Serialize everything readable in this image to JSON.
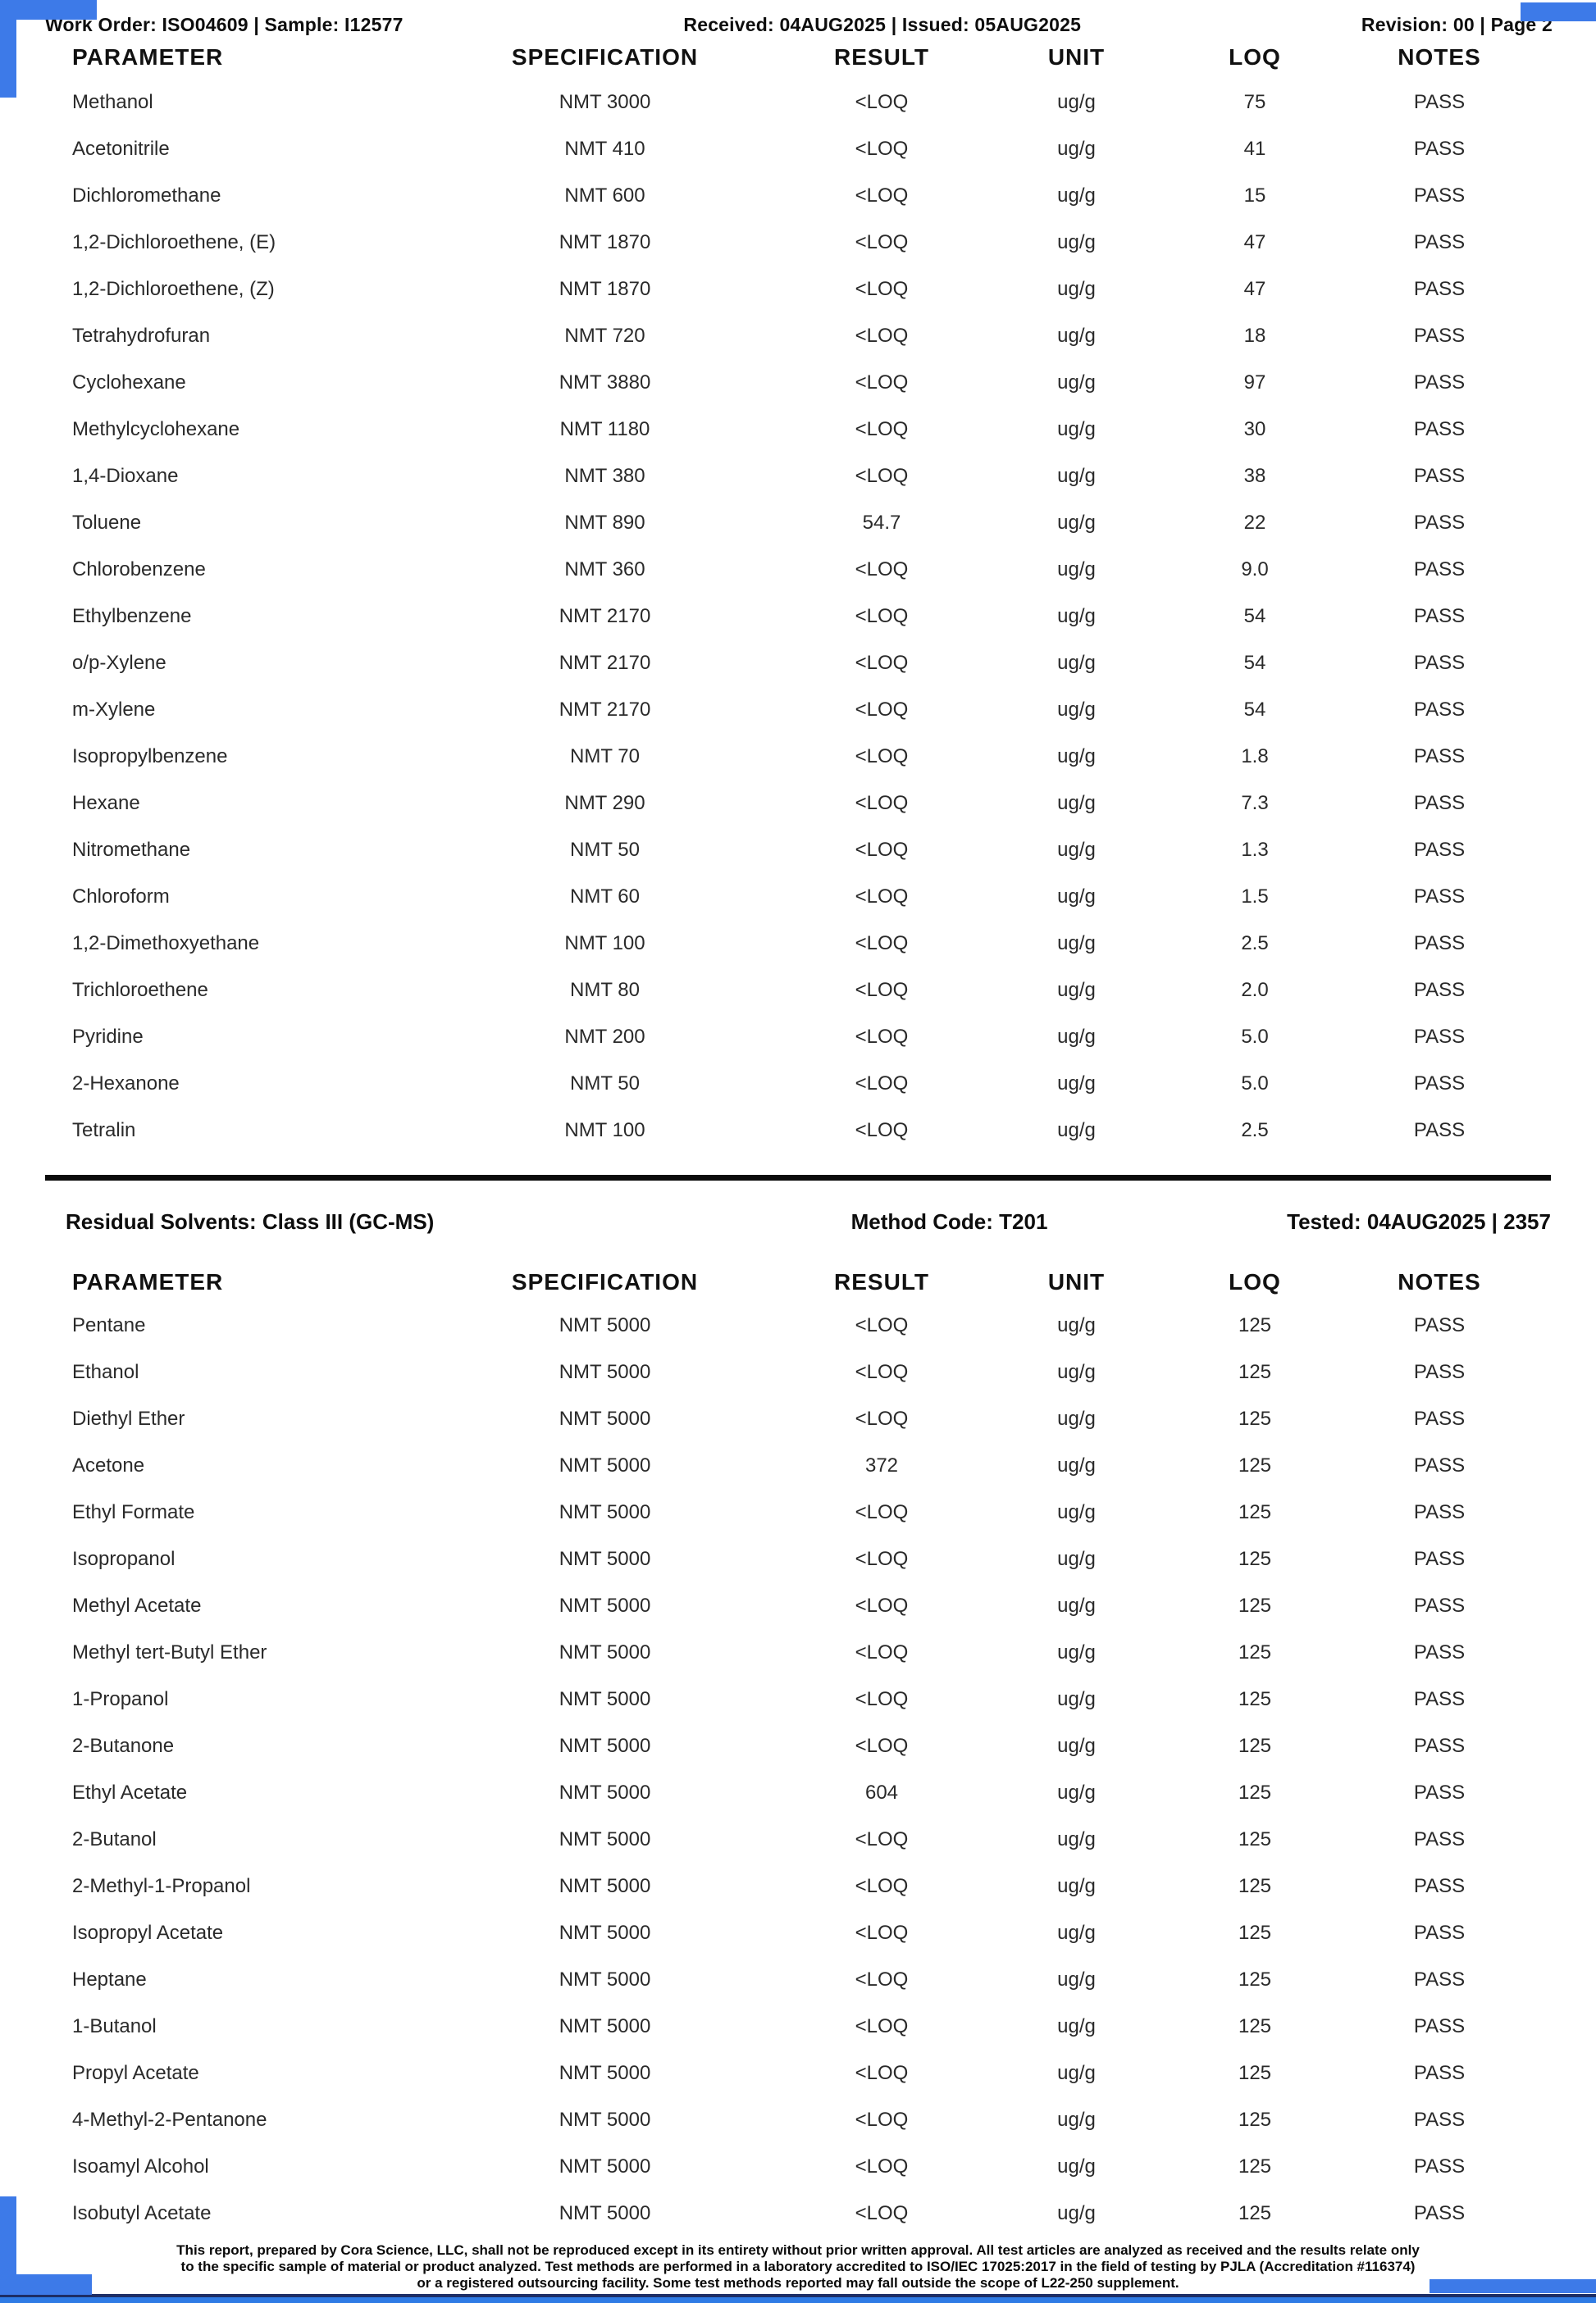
{
  "header": {
    "left": "Work Order: ISO04609 | Sample: I12577",
    "center": "Received: 04AUG2025 | Issued: 05AUG2025",
    "right": "Revision: 00 | Page 2"
  },
  "columns": [
    "PARAMETER",
    "SPECIFICATION",
    "RESULT",
    "UNIT",
    "LOQ",
    "NOTES"
  ],
  "table1": {
    "rows": [
      {
        "parameter": "Methanol",
        "specification": "NMT 3000",
        "result": "<LOQ",
        "unit": "ug/g",
        "loq": "75",
        "notes": "PASS"
      },
      {
        "parameter": "Acetonitrile",
        "specification": "NMT 410",
        "result": "<LOQ",
        "unit": "ug/g",
        "loq": "41",
        "notes": "PASS"
      },
      {
        "parameter": "Dichloromethane",
        "specification": "NMT 600",
        "result": "<LOQ",
        "unit": "ug/g",
        "loq": "15",
        "notes": "PASS"
      },
      {
        "parameter": "1,2-Dichloroethene, (E)",
        "specification": "NMT 1870",
        "result": "<LOQ",
        "unit": "ug/g",
        "loq": "47",
        "notes": "PASS"
      },
      {
        "parameter": "1,2-Dichloroethene, (Z)",
        "specification": "NMT 1870",
        "result": "<LOQ",
        "unit": "ug/g",
        "loq": "47",
        "notes": "PASS"
      },
      {
        "parameter": "Tetrahydrofuran",
        "specification": "NMT 720",
        "result": "<LOQ",
        "unit": "ug/g",
        "loq": "18",
        "notes": "PASS"
      },
      {
        "parameter": "Cyclohexane",
        "specification": "NMT 3880",
        "result": "<LOQ",
        "unit": "ug/g",
        "loq": "97",
        "notes": "PASS"
      },
      {
        "parameter": "Methylcyclohexane",
        "specification": "NMT 1180",
        "result": "<LOQ",
        "unit": "ug/g",
        "loq": "30",
        "notes": "PASS"
      },
      {
        "parameter": "1,4-Dioxane",
        "specification": "NMT 380",
        "result": "<LOQ",
        "unit": "ug/g",
        "loq": "38",
        "notes": "PASS"
      },
      {
        "parameter": "Toluene",
        "specification": "NMT 890",
        "result": "54.7",
        "unit": "ug/g",
        "loq": "22",
        "notes": "PASS"
      },
      {
        "parameter": "Chlorobenzene",
        "specification": "NMT 360",
        "result": "<LOQ",
        "unit": "ug/g",
        "loq": "9.0",
        "notes": "PASS"
      },
      {
        "parameter": "Ethylbenzene",
        "specification": "NMT 2170",
        "result": "<LOQ",
        "unit": "ug/g",
        "loq": "54",
        "notes": "PASS"
      },
      {
        "parameter": "o/p-Xylene",
        "specification": "NMT 2170",
        "result": "<LOQ",
        "unit": "ug/g",
        "loq": "54",
        "notes": "PASS"
      },
      {
        "parameter": "m-Xylene",
        "specification": "NMT 2170",
        "result": "<LOQ",
        "unit": "ug/g",
        "loq": "54",
        "notes": "PASS"
      },
      {
        "parameter": "Isopropylbenzene",
        "specification": "NMT 70",
        "result": "<LOQ",
        "unit": "ug/g",
        "loq": "1.8",
        "notes": "PASS"
      },
      {
        "parameter": "Hexane",
        "specification": "NMT 290",
        "result": "<LOQ",
        "unit": "ug/g",
        "loq": "7.3",
        "notes": "PASS"
      },
      {
        "parameter": "Nitromethane",
        "specification": "NMT 50",
        "result": "<LOQ",
        "unit": "ug/g",
        "loq": "1.3",
        "notes": "PASS"
      },
      {
        "parameter": "Chloroform",
        "specification": "NMT 60",
        "result": "<LOQ",
        "unit": "ug/g",
        "loq": "1.5",
        "notes": "PASS"
      },
      {
        "parameter": "1,2-Dimethoxyethane",
        "specification": "NMT 100",
        "result": "<LOQ",
        "unit": "ug/g",
        "loq": "2.5",
        "notes": "PASS"
      },
      {
        "parameter": "Trichloroethene",
        "specification": "NMT 80",
        "result": "<LOQ",
        "unit": "ug/g",
        "loq": "2.0",
        "notes": "PASS"
      },
      {
        "parameter": "Pyridine",
        "specification": "NMT 200",
        "result": "<LOQ",
        "unit": "ug/g",
        "loq": "5.0",
        "notes": "PASS"
      },
      {
        "parameter": "2-Hexanone",
        "specification": "NMT 50",
        "result": "<LOQ",
        "unit": "ug/g",
        "loq": "5.0",
        "notes": "PASS"
      },
      {
        "parameter": "Tetralin",
        "specification": "NMT 100",
        "result": "<LOQ",
        "unit": "ug/g",
        "loq": "2.5",
        "notes": "PASS"
      }
    ]
  },
  "section2": {
    "title": "Residual Solvents: Class III (GC-MS)",
    "method": "Method Code: T201",
    "tested": "Tested: 04AUG2025 | 2357"
  },
  "table2": {
    "rows": [
      {
        "parameter": "Pentane",
        "specification": "NMT 5000",
        "result": "<LOQ",
        "unit": "ug/g",
        "loq": "125",
        "notes": "PASS"
      },
      {
        "parameter": "Ethanol",
        "specification": "NMT 5000",
        "result": "<LOQ",
        "unit": "ug/g",
        "loq": "125",
        "notes": "PASS"
      },
      {
        "parameter": "Diethyl Ether",
        "specification": "NMT 5000",
        "result": "<LOQ",
        "unit": "ug/g",
        "loq": "125",
        "notes": "PASS"
      },
      {
        "parameter": "Acetone",
        "specification": "NMT 5000",
        "result": "372",
        "unit": "ug/g",
        "loq": "125",
        "notes": "PASS"
      },
      {
        "parameter": "Ethyl Formate",
        "specification": "NMT 5000",
        "result": "<LOQ",
        "unit": "ug/g",
        "loq": "125",
        "notes": "PASS"
      },
      {
        "parameter": "Isopropanol",
        "specification": "NMT 5000",
        "result": "<LOQ",
        "unit": "ug/g",
        "loq": "125",
        "notes": "PASS"
      },
      {
        "parameter": "Methyl Acetate",
        "specification": "NMT 5000",
        "result": "<LOQ",
        "unit": "ug/g",
        "loq": "125",
        "notes": "PASS"
      },
      {
        "parameter": "Methyl tert-Butyl Ether",
        "specification": "NMT 5000",
        "result": "<LOQ",
        "unit": "ug/g",
        "loq": "125",
        "notes": "PASS"
      },
      {
        "parameter": "1-Propanol",
        "specification": "NMT 5000",
        "result": "<LOQ",
        "unit": "ug/g",
        "loq": "125",
        "notes": "PASS"
      },
      {
        "parameter": "2-Butanone",
        "specification": "NMT 5000",
        "result": "<LOQ",
        "unit": "ug/g",
        "loq": "125",
        "notes": "PASS"
      },
      {
        "parameter": "Ethyl Acetate",
        "specification": "NMT 5000",
        "result": "604",
        "unit": "ug/g",
        "loq": "125",
        "notes": "PASS"
      },
      {
        "parameter": "2-Butanol",
        "specification": "NMT 5000",
        "result": "<LOQ",
        "unit": "ug/g",
        "loq": "125",
        "notes": "PASS"
      },
      {
        "parameter": "2-Methyl-1-Propanol",
        "specification": "NMT 5000",
        "result": "<LOQ",
        "unit": "ug/g",
        "loq": "125",
        "notes": "PASS"
      },
      {
        "parameter": "Isopropyl Acetate",
        "specification": "NMT 5000",
        "result": "<LOQ",
        "unit": "ug/g",
        "loq": "125",
        "notes": "PASS"
      },
      {
        "parameter": "Heptane",
        "specification": "NMT 5000",
        "result": "<LOQ",
        "unit": "ug/g",
        "loq": "125",
        "notes": "PASS"
      },
      {
        "parameter": "1-Butanol",
        "specification": "NMT 5000",
        "result": "<LOQ",
        "unit": "ug/g",
        "loq": "125",
        "notes": "PASS"
      },
      {
        "parameter": "Propyl Acetate",
        "specification": "NMT 5000",
        "result": "<LOQ",
        "unit": "ug/g",
        "loq": "125",
        "notes": "PASS"
      },
      {
        "parameter": "4-Methyl-2-Pentanone",
        "specification": "NMT 5000",
        "result": "<LOQ",
        "unit": "ug/g",
        "loq": "125",
        "notes": "PASS"
      },
      {
        "parameter": "Isoamyl Alcohol",
        "specification": "NMT 5000",
        "result": "<LOQ",
        "unit": "ug/g",
        "loq": "125",
        "notes": "PASS"
      },
      {
        "parameter": "Isobutyl Acetate",
        "specification": "NMT 5000",
        "result": "<LOQ",
        "unit": "ug/g",
        "loq": "125",
        "notes": "PASS"
      }
    ]
  },
  "footer": {
    "lines": [
      "This report, prepared by Cora Science, LLC, shall not be reproduced except in its entirety without prior written approval. All test articles are analyzed as received and the results relate only",
      "to the specific sample of material or product analyzed. Test methods are performed in a laboratory accredited to ISO/IEC 17025:2017 in the field of testing by PJLA (Accreditation #116374)",
      "or a registered outsourcing facility. Some test methods reported may fall outside the scope of L22-250 supplement."
    ]
  },
  "colors": {
    "accent_blue": "#3d7ae8",
    "bar_navy": "#1d2e66",
    "bar_blue": "#2e7be5"
  }
}
